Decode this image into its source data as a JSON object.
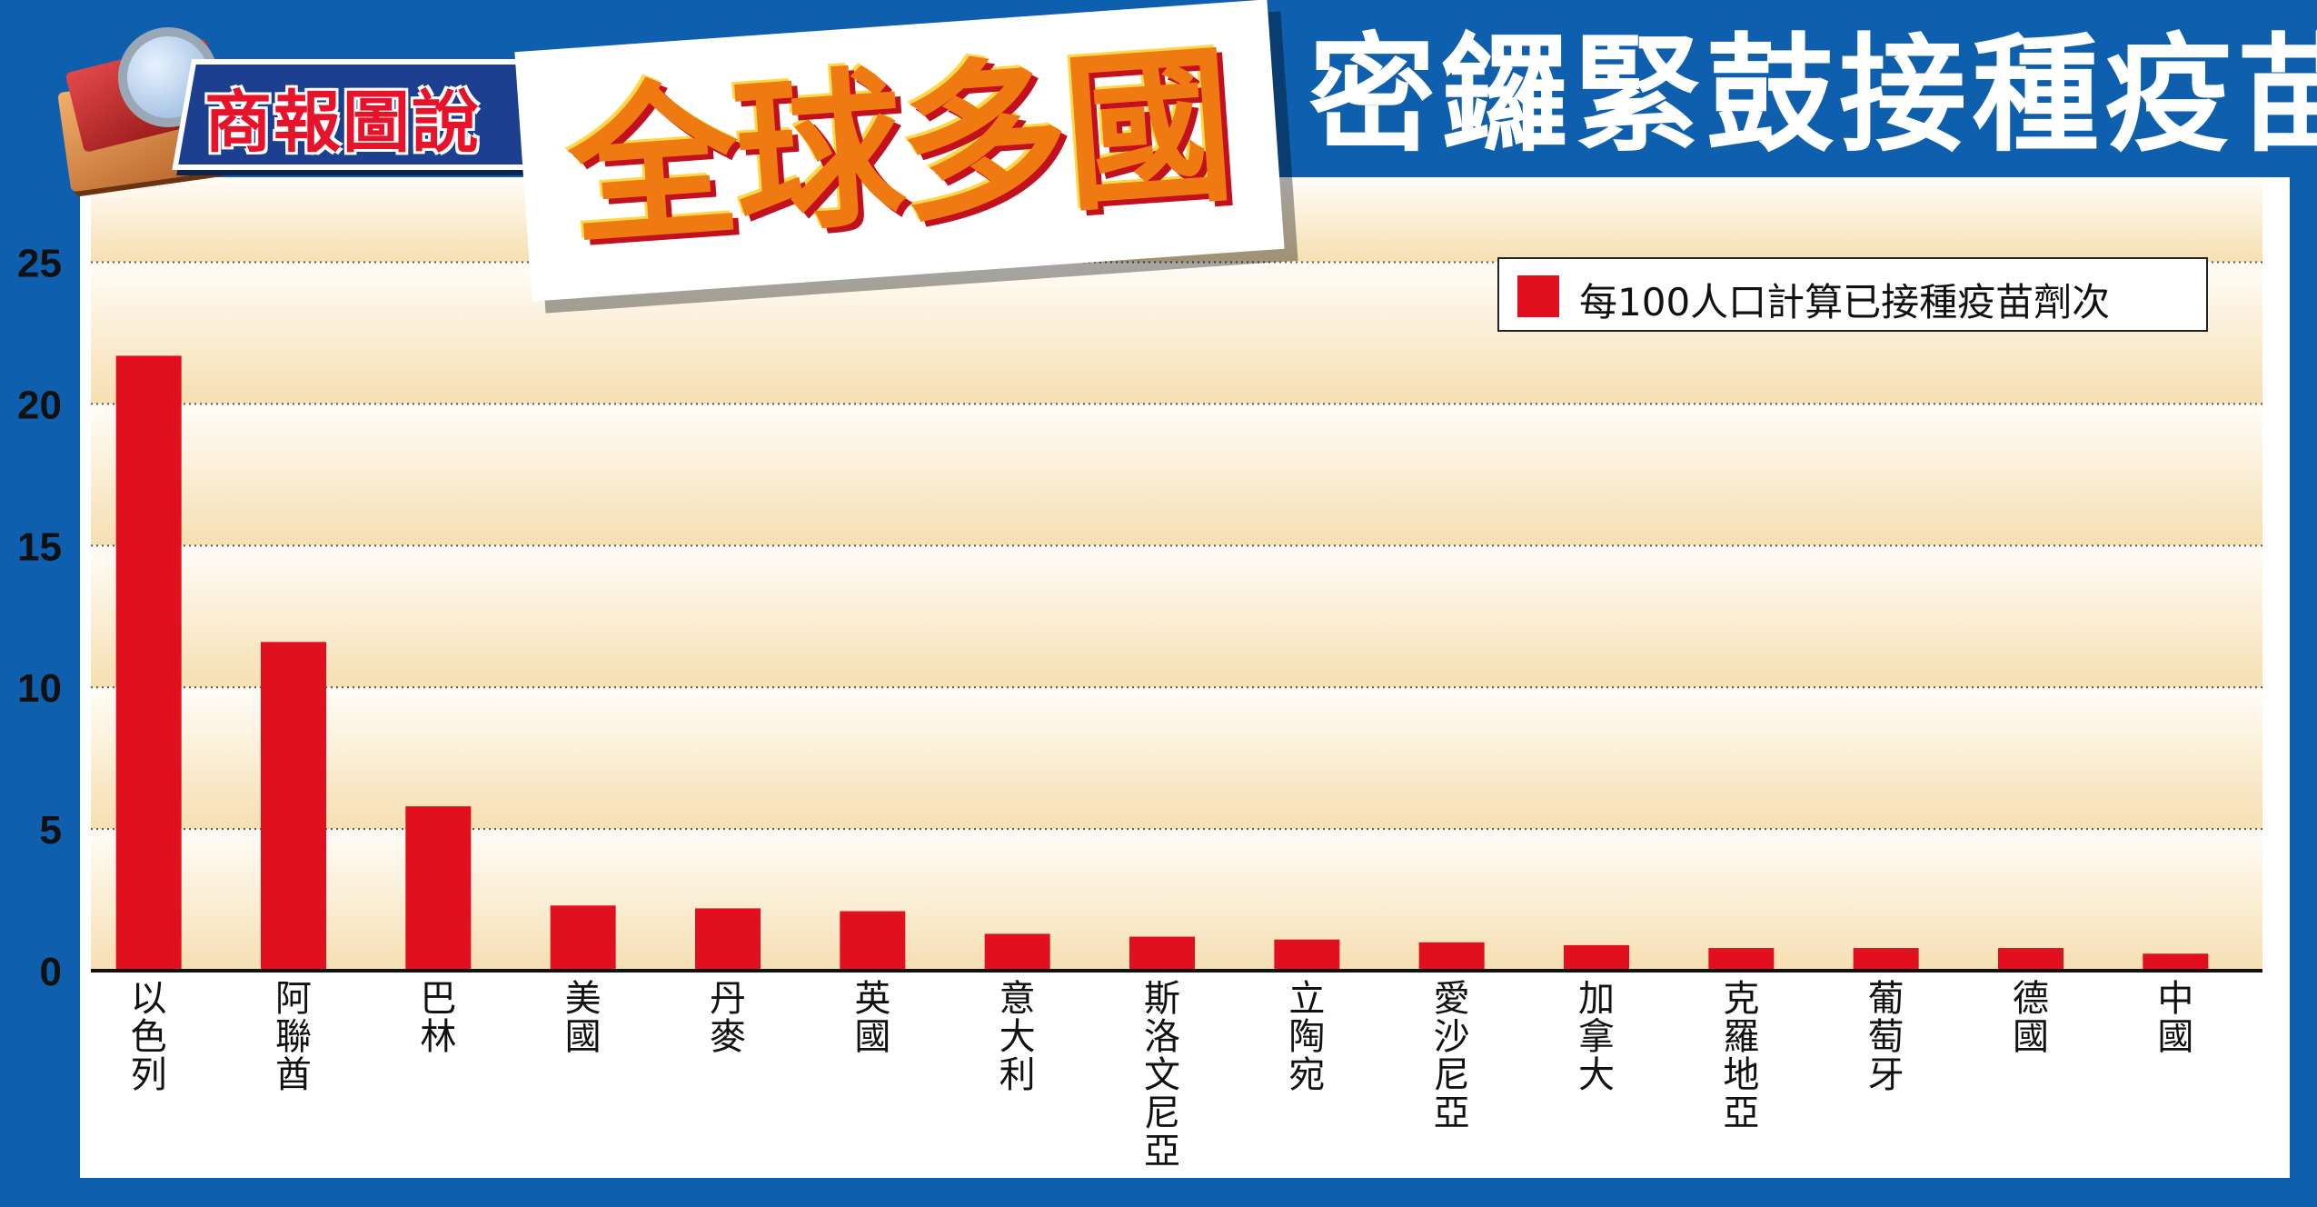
{
  "header": {
    "logo_text": "商報圖說",
    "badge_text": "全球多國",
    "title": "密鑼緊鼓接種疫苗"
  },
  "colors": {
    "frame": "#0e5fae",
    "bar": "#e1101f",
    "band_light": "#fffdf8",
    "band_dark": "#f6dfb2"
  },
  "chart_data": {
    "type": "bar",
    "categories": [
      "以色列",
      "阿聯酋",
      "巴林",
      "美國",
      "丹麥",
      "英國",
      "意大利",
      "斯洛文尼亞",
      "立陶宛",
      "愛沙尼亞",
      "加拿大",
      "克羅地亞",
      "葡萄牙",
      "德國",
      "中國"
    ],
    "series": [
      {
        "name": "每100人口計算已接種疫苗劑次",
        "values": [
          21.7,
          11.6,
          5.8,
          2.3,
          2.2,
          2.1,
          1.3,
          1.2,
          1.1,
          1.0,
          0.9,
          0.8,
          0.8,
          0.8,
          0.6
        ]
      }
    ],
    "ylim": [
      0,
      28
    ],
    "yticks": [
      0,
      5,
      10,
      15,
      20,
      25
    ],
    "xlabel": "",
    "ylabel": "",
    "grid": true,
    "legend_position": "top-right"
  }
}
